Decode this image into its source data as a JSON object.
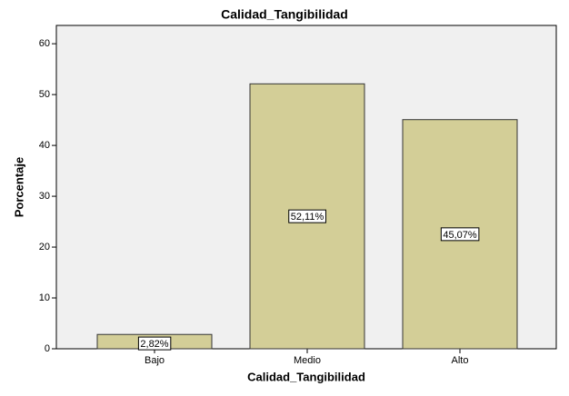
{
  "chart_data": {
    "type": "bar",
    "title": "Calidad_Tangibilidad",
    "x_label": "Calidad_Tangibilidad",
    "y_label": "Porcentaje",
    "categories": [
      "Bajo",
      "Medio",
      "Alto"
    ],
    "values": [
      2.82,
      52.11,
      45.07
    ],
    "value_labels": [
      "2,82%",
      "52,11%",
      "45,07%"
    ],
    "color": "#d3ce97",
    "ylim": [
      0,
      63.6
    ],
    "yticks": [
      0,
      10,
      20,
      30,
      40,
      50,
      60
    ],
    "grid": false
  }
}
